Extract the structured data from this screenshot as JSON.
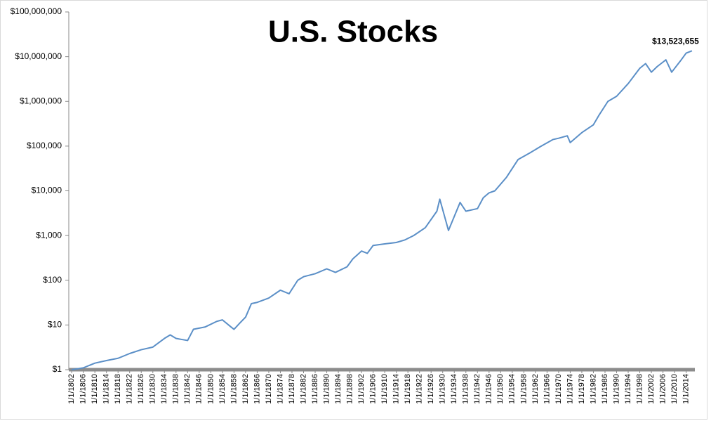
{
  "chart_data": {
    "type": "line",
    "title": "U.S. Stocks",
    "log_scale": true,
    "grid": false,
    "color": "#5b8fc7",
    "x": [
      1802,
      1806,
      1810,
      1814,
      1818,
      1822,
      1826,
      1830,
      1834,
      1836,
      1838,
      1842,
      1844,
      1848,
      1852,
      1854,
      1857,
      1858,
      1860,
      1862,
      1864,
      1866,
      1870,
      1874,
      1877,
      1880,
      1882,
      1886,
      1890,
      1893,
      1897,
      1899,
      1902,
      1904,
      1906,
      1910,
      1914,
      1917,
      1920,
      1924,
      1928,
      1929,
      1932,
      1936,
      1938,
      1942,
      1944,
      1946,
      1948,
      1952,
      1956,
      1960,
      1964,
      1968,
      1970,
      1973,
      1974,
      1978,
      1982,
      1984,
      1987,
      1990,
      1994,
      1998,
      2000,
      2002,
      2004,
      2007,
      2009,
      2012,
      2014,
      2016
    ],
    "values": [
      1,
      1.1,
      1.4,
      1.6,
      1.8,
      2.3,
      2.8,
      3.2,
      5,
      6,
      5,
      4.5,
      8,
      9,
      12,
      13,
      9,
      8,
      11,
      15,
      30,
      32,
      40,
      60,
      50,
      100,
      120,
      140,
      180,
      150,
      200,
      300,
      450,
      400,
      600,
      650,
      700,
      800,
      1000,
      1500,
      3500,
      6500,
      1300,
      5500,
      3500,
      4000,
      7000,
      9000,
      10000,
      20000,
      50000,
      70000,
      100000,
      140000,
      150000,
      170000,
      120000,
      200000,
      300000,
      500000,
      1000000,
      1300000,
      2500000,
      5500000,
      7000000,
      4500000,
      6000000,
      8500000,
      4500000,
      8000000,
      12000000,
      13523655
    ],
    "value_labels": [
      null,
      null,
      null,
      null,
      null,
      null,
      null,
      null,
      null,
      null,
      null,
      null,
      null,
      null,
      null,
      null,
      null,
      null,
      null,
      null,
      null,
      null,
      null,
      null,
      null,
      null,
      null,
      null,
      null,
      null,
      null,
      null,
      null,
      null,
      null,
      null,
      null,
      null,
      null,
      null,
      null,
      null,
      null,
      null,
      null,
      null,
      null,
      null,
      null,
      null,
      null,
      null,
      null,
      null,
      null,
      null,
      null,
      null,
      null,
      null,
      null,
      null,
      null,
      null,
      null,
      null,
      null,
      null,
      null,
      null,
      null,
      "$13,523,655"
    ],
    "ylim": [
      1,
      100000000
    ],
    "yticks": [
      {
        "value": 1,
        "label": "$1"
      },
      {
        "value": 10,
        "label": "$10"
      },
      {
        "value": 100,
        "label": "$100"
      },
      {
        "value": 1000,
        "label": "$1,000"
      },
      {
        "value": 10000,
        "label": "$10,000"
      },
      {
        "value": 100000,
        "label": "$100,000"
      },
      {
        "value": 1000000,
        "label": "$1,000,000"
      },
      {
        "value": 10000000,
        "label": "$10,000,000"
      },
      {
        "value": 100000000,
        "label": "$100,000,000"
      }
    ],
    "xlim": [
      1801,
      2017
    ],
    "xticks": [
      {
        "value": 1802,
        "label": "1/1/1802"
      },
      {
        "value": 1806,
        "label": "1/1/1806"
      },
      {
        "value": 1810,
        "label": "1/1/1810"
      },
      {
        "value": 1814,
        "label": "1/1/1814"
      },
      {
        "value": 1818,
        "label": "1/1/1818"
      },
      {
        "value": 1822,
        "label": "1/1/1822"
      },
      {
        "value": 1826,
        "label": "1/1/1826"
      },
      {
        "value": 1830,
        "label": "1/1/1830"
      },
      {
        "value": 1834,
        "label": "1/1/1834"
      },
      {
        "value": 1838,
        "label": "1/1/1838"
      },
      {
        "value": 1842,
        "label": "1/1/1842"
      },
      {
        "value": 1846,
        "label": "1/1/1846"
      },
      {
        "value": 1850,
        "label": "1/1/1850"
      },
      {
        "value": 1854,
        "label": "1/1/1854"
      },
      {
        "value": 1858,
        "label": "1/1/1858"
      },
      {
        "value": 1862,
        "label": "1/1/1862"
      },
      {
        "value": 1866,
        "label": "1/1/1866"
      },
      {
        "value": 1870,
        "label": "1/1/1870"
      },
      {
        "value": 1874,
        "label": "1/1/1874"
      },
      {
        "value": 1878,
        "label": "1/1/1878"
      },
      {
        "value": 1882,
        "label": "1/1/1882"
      },
      {
        "value": 1886,
        "label": "1/1/1886"
      },
      {
        "value": 1890,
        "label": "1/1/1890"
      },
      {
        "value": 1894,
        "label": "1/1/1894"
      },
      {
        "value": 1898,
        "label": "1/1/1898"
      },
      {
        "value": 1902,
        "label": "1/1/1902"
      },
      {
        "value": 1906,
        "label": "1/1/1906"
      },
      {
        "value": 1910,
        "label": "1/1/1910"
      },
      {
        "value": 1914,
        "label": "1/1/1914"
      },
      {
        "value": 1918,
        "label": "1/1/1918"
      },
      {
        "value": 1922,
        "label": "1/1/1922"
      },
      {
        "value": 1926,
        "label": "1/1/1926"
      },
      {
        "value": 1930,
        "label": "1/1/1930"
      },
      {
        "value": 1934,
        "label": "1/1/1934"
      },
      {
        "value": 1938,
        "label": "1/1/1938"
      },
      {
        "value": 1942,
        "label": "1/1/1942"
      },
      {
        "value": 1946,
        "label": "1/1/1946"
      },
      {
        "value": 1950,
        "label": "1/1/1950"
      },
      {
        "value": 1954,
        "label": "1/1/1954"
      },
      {
        "value": 1958,
        "label": "1/1/1958"
      },
      {
        "value": 1962,
        "label": "1/1/1962"
      },
      {
        "value": 1966,
        "label": "1/1/1966"
      },
      {
        "value": 1970,
        "label": "1/1/1970"
      },
      {
        "value": 1974,
        "label": "1/1/1974"
      },
      {
        "value": 1978,
        "label": "1/1/1978"
      },
      {
        "value": 1982,
        "label": "1/1/1982"
      },
      {
        "value": 1986,
        "label": "1/1/1986"
      },
      {
        "value": 1990,
        "label": "1/1/1990"
      },
      {
        "value": 1994,
        "label": "1/1/1994"
      },
      {
        "value": 1998,
        "label": "1/1/1998"
      },
      {
        "value": 2002,
        "label": "1/1/2002"
      },
      {
        "value": 2006,
        "label": "1/1/2006"
      },
      {
        "value": 2010,
        "label": "1/1/2010"
      },
      {
        "value": 2014,
        "label": "1/1/2014"
      }
    ]
  }
}
